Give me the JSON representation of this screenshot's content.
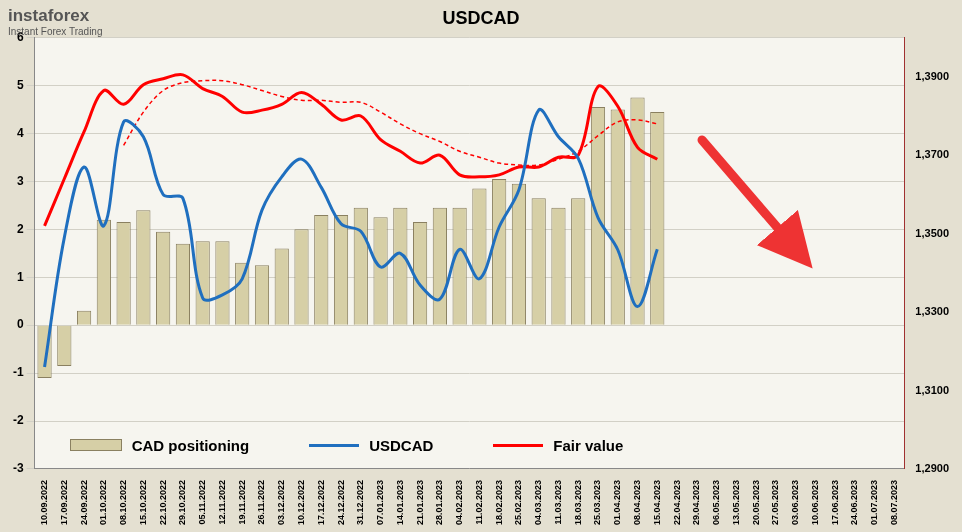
{
  "chart_data": {
    "type": "bar",
    "title": "USDCAD",
    "annotations": [
      "instaforex",
      "Instant Forex Trading"
    ],
    "categories": [
      "10.09.2022",
      "17.09.2022",
      "24.09.2022",
      "01.10.2022",
      "08.10.2022",
      "15.10.2022",
      "22.10.2022",
      "29.10.2022",
      "05.11.2022",
      "12.11.2022",
      "19.11.2022",
      "26.11.2022",
      "03.12.2022",
      "10.12.2022",
      "17.12.2022",
      "24.12.2022",
      "31.12.2022",
      "07.01.2023",
      "14.01.2023",
      "21.01.2023",
      "28.01.2023",
      "04.02.2023",
      "11.02.2023",
      "18.02.2023",
      "25.02.2023",
      "04.03.2023",
      "11.03.2023",
      "18.03.2023",
      "25.03.2023",
      "01.04.2023",
      "08.04.2023",
      "15.04.2023",
      "22.04.2023",
      "29.04.2023",
      "06.05.2023",
      "13.05.2023",
      "20.05.2023",
      "27.05.2023",
      "03.06.2023",
      "10.06.2023",
      "17.06.2023",
      "24.06.2023",
      "01.07.2023",
      "08.07.2023"
    ],
    "series": [
      {
        "name": "CAD positioning",
        "type": "bar",
        "color": "#d6cfa6",
        "values": [
          -1.1,
          -0.85,
          0.3,
          2.2,
          2.15,
          2.4,
          1.95,
          1.7,
          1.75,
          1.75,
          1.3,
          1.25,
          1.6,
          2.0,
          2.3,
          2.3,
          2.45,
          2.25,
          2.45,
          2.15,
          2.45,
          2.45,
          2.85,
          3.05,
          2.95,
          2.65,
          2.45,
          2.65,
          4.55,
          4.5,
          4.75,
          4.45,
          null,
          null,
          null,
          null,
          null,
          null,
          null,
          null,
          null,
          null,
          null,
          null
        ]
      },
      {
        "name": "USDCAD",
        "type": "line",
        "color": "#1f6fbf",
        "axis": "y2",
        "values": [
          1.316,
          1.349,
          1.367,
          1.352,
          1.3785,
          1.3747,
          1.36,
          1.359,
          1.3336,
          1.3344,
          1.3385,
          1.356,
          1.3645,
          1.369,
          1.3618,
          1.3525,
          1.3506,
          1.3415,
          1.345,
          1.3369,
          1.3333,
          1.346,
          1.3385,
          1.3517,
          1.3612,
          1.3815,
          1.3747,
          1.3692,
          1.3541,
          1.3459,
          1.3314,
          1.346,
          null,
          null,
          null,
          null,
          null,
          null,
          null,
          null,
          null,
          null,
          null,
          null
        ]
      },
      {
        "name": "Fair value",
        "type": "line",
        "color": "#ff0000",
        "axis": "y2",
        "values": [
          1.352,
          1.364,
          1.376,
          1.3865,
          1.383,
          1.388,
          1.3895,
          1.3905,
          1.387,
          1.385,
          1.381,
          1.3815,
          1.383,
          1.386,
          1.383,
          1.379,
          1.38,
          1.374,
          1.371,
          1.368,
          1.37,
          1.365,
          1.3645,
          1.365,
          1.367,
          1.367,
          1.3695,
          1.37,
          1.3875,
          1.3825,
          1.372,
          1.369,
          null,
          null,
          null,
          null,
          null,
          null,
          null,
          null,
          null,
          null,
          null,
          null
        ]
      },
      {
        "type": "line",
        "color": "#ff0000",
        "axis": "y2",
        "line_style": "dashed",
        "values": [
          null,
          null,
          null,
          null,
          1.3725,
          1.381,
          1.3865,
          1.3885,
          1.389,
          1.389,
          1.388,
          1.3865,
          1.385,
          1.384,
          1.384,
          1.3835,
          1.3835,
          1.381,
          1.378,
          1.3755,
          1.3735,
          1.371,
          1.3695,
          1.368,
          1.3675,
          1.3675,
          1.369,
          1.371,
          1.375,
          1.3785,
          1.379,
          1.378,
          null,
          null,
          null,
          null,
          null,
          null,
          null,
          null,
          null,
          null,
          null,
          null
        ]
      }
    ],
    "ylim": [
      -3,
      6
    ],
    "yticks": [
      -3,
      -2,
      -1,
      0,
      1,
      2,
      3,
      4,
      5,
      6
    ],
    "y2lim": [
      1.29,
      1.4
    ],
    "y2ticks": [
      {
        "value": 1.29,
        "label": "1,2900"
      },
      {
        "value": 1.31,
        "label": "1,3100"
      },
      {
        "value": 1.33,
        "label": "1,3300"
      },
      {
        "value": 1.35,
        "label": "1,3500"
      },
      {
        "value": 1.37,
        "label": "1,3700"
      },
      {
        "value": 1.39,
        "label": "1,3900"
      }
    ],
    "grid": true,
    "legend": "bottom"
  }
}
